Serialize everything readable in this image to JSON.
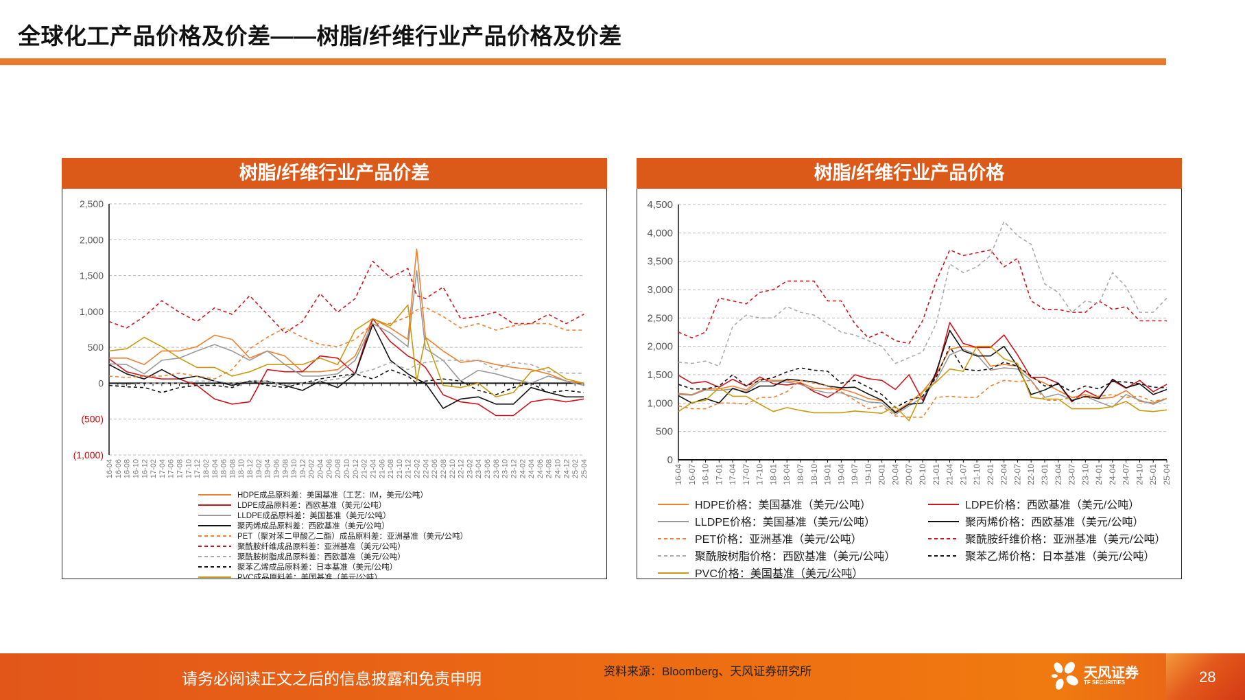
{
  "page": {
    "title": "全球化工产品价格及价差——树脂/纤维行业产品价格及价差",
    "footer_disclaimer": "请务必阅读正文之后的信息披露和免责申明",
    "footer_source": "资料来源：Bloomberg、天风证券研究所",
    "brand_cn": "天风证券",
    "brand_en": "TF SECURITIES",
    "page_number": "28",
    "colors": {
      "accent": "#ea7a2c",
      "panel_header": "#db5a1a",
      "negative_tick": "#d40000"
    }
  },
  "chart_data": [
    {
      "type": "line",
      "title": "树脂/纤维行业产品价差",
      "ylim": [
        -1000,
        2500
      ],
      "yticks": [
        2500,
        2000,
        1500,
        1000,
        500,
        0,
        -500,
        -1000
      ],
      "ytick_labels": [
        "2,500",
        "2,000",
        "1,500",
        "1,000",
        "500",
        "0",
        "(500)",
        "(1,000)"
      ],
      "grid": true,
      "legend_placement": "bottom",
      "categories": [
        "16-04",
        "16-06",
        "16-08",
        "16-10",
        "16-12",
        "17-02",
        "17-04",
        "17-06",
        "17-08",
        "17-10",
        "17-12",
        "18-02",
        "18-04",
        "18-06",
        "18-08",
        "18-10",
        "18-12",
        "19-02",
        "19-04",
        "19-06",
        "19-08",
        "19-10",
        "19-12",
        "20-02",
        "20-04",
        "20-06",
        "20-08",
        "20-10",
        "20-12",
        "21-02",
        "21-04",
        "21-06",
        "21-08",
        "21-10",
        "21-12",
        "22-02",
        "22-04",
        "22-06",
        "22-08",
        "22-10",
        "22-12",
        "23-02",
        "23-04",
        "23-06",
        "23-08",
        "23-10",
        "23-12",
        "24-02",
        "24-04",
        "24-06",
        "24-08",
        "24-10",
        "24-12",
        "25-02",
        "25-04"
      ],
      "x": [
        "16-04",
        "16-08",
        "16-12",
        "17-04",
        "17-08",
        "17-12",
        "18-04",
        "18-08",
        "18-12",
        "19-04",
        "19-08",
        "19-12",
        "20-04",
        "20-08",
        "20-12",
        "21-04",
        "21-08",
        "21-12",
        "22-02",
        "22-04",
        "22-08",
        "22-12",
        "23-04",
        "23-08",
        "23-12",
        "24-04",
        "24-08",
        "24-12",
        "25-04"
      ],
      "series": [
        {
          "name": "HDPE成品原料差：美国基准（工艺：IM，美元/公吨）",
          "color": "#f07f2e",
          "dash": false,
          "values": [
            350,
            350,
            260,
            450,
            450,
            510,
            670,
            610,
            350,
            450,
            380,
            160,
            160,
            190,
            380,
            900,
            770,
            610,
            1870,
            640,
            450,
            290,
            320,
            260,
            220,
            190,
            130,
            30,
            0
          ]
        },
        {
          "name": "LDPE成品原料差：西欧基准（美元/公吨）",
          "color": "#d0121b",
          "dash": false,
          "values": [
            340,
            160,
            100,
            60,
            60,
            -30,
            -220,
            -290,
            -260,
            190,
            160,
            160,
            380,
            350,
            130,
            900,
            580,
            380,
            320,
            220,
            -160,
            -260,
            -290,
            -450,
            -450,
            -260,
            -220,
            -260,
            -220
          ]
        },
        {
          "name": "LLDPE成品原料差：美国基准（美元/公吨）",
          "color": "#999999",
          "dash": false,
          "values": [
            270,
            260,
            130,
            320,
            350,
            450,
            540,
            450,
            320,
            450,
            260,
            100,
            100,
            130,
            320,
            830,
            700,
            510,
            1570,
            480,
            320,
            30,
            180,
            130,
            60,
            0,
            100,
            30,
            -30
          ]
        },
        {
          "name": "聚丙烯成品原料差：西欧基准（美元/公吨）",
          "color": "#111111",
          "dash": false,
          "values": [
            260,
            130,
            60,
            190,
            60,
            100,
            30,
            -30,
            30,
            30,
            -30,
            -100,
            30,
            -60,
            130,
            820,
            320,
            130,
            60,
            0,
            -350,
            -220,
            -190,
            -290,
            -290,
            -60,
            -130,
            -190,
            -190
          ]
        },
        {
          "name": "PET（聚对苯二甲酸乙二酯）成品原料差：亚洲基准（美元/公吨）",
          "color": "#f07f2e",
          "dash": true,
          "values": [
            100,
            80,
            100,
            100,
            140,
            100,
            60,
            190,
            480,
            640,
            770,
            640,
            540,
            510,
            610,
            830,
            830,
            930,
            1020,
            1060,
            930,
            770,
            830,
            740,
            800,
            830,
            830,
            740,
            740
          ]
        },
        {
          "name": "聚酰胺纤维成品原料差：亚洲基准（美元/公吨）",
          "color": "#d0121b",
          "dash": true,
          "values": [
            860,
            770,
            930,
            1150,
            990,
            860,
            1050,
            960,
            1220,
            960,
            700,
            860,
            1250,
            990,
            1180,
            1700,
            1470,
            1600,
            1220,
            1180,
            1340,
            900,
            930,
            990,
            830,
            830,
            960,
            830,
            960
          ]
        },
        {
          "name": "聚酰胺树脂成品原料差：西欧基准（美元/公吨）",
          "color": "#aaaaaa",
          "dash": true,
          "values": [
            -30,
            -20,
            0,
            0,
            0,
            30,
            30,
            0,
            30,
            30,
            -30,
            0,
            30,
            60,
            130,
            190,
            290,
            190,
            260,
            290,
            320,
            320,
            320,
            190,
            290,
            260,
            160,
            140,
            140
          ]
        },
        {
          "name": "聚苯乙烯成品原料差：日本基准（美元/公吨）",
          "color": "#111111",
          "dash": true,
          "values": [
            -30,
            -50,
            -60,
            -130,
            -60,
            -30,
            -30,
            -60,
            30,
            -30,
            -60,
            0,
            60,
            100,
            130,
            60,
            190,
            100,
            0,
            30,
            60,
            30,
            -100,
            -160,
            -60,
            0,
            -130,
            -100,
            -130
          ]
        },
        {
          "name": "PVC成品原料差：美国基准（美元/公吨）",
          "color": "#c99a0e",
          "dash": false,
          "values": [
            450,
            480,
            640,
            510,
            350,
            220,
            220,
            100,
            160,
            260,
            260,
            260,
            350,
            260,
            740,
            900,
            800,
            1090,
            30,
            640,
            -30,
            -60,
            0,
            -190,
            -130,
            160,
            220,
            60,
            0
          ]
        }
      ]
    },
    {
      "type": "line",
      "title": "树脂/纤维行业产品价格",
      "ylim": [
        0,
        4500
      ],
      "yticks": [
        0,
        500,
        1000,
        1500,
        2000,
        2500,
        3000,
        3500,
        4000,
        4500
      ],
      "ytick_labels": [
        "0",
        "500",
        "1,000",
        "1,500",
        "2,000",
        "2,500",
        "3,000",
        "3,500",
        "4,000",
        "4,500"
      ],
      "grid": true,
      "legend_placement": "bottom",
      "categories": [
        "16-04",
        "16-07",
        "16-10",
        "17-01",
        "17-04",
        "17-07",
        "17-10",
        "18-01",
        "18-04",
        "18-07",
        "18-10",
        "19-01",
        "19-04",
        "19-07",
        "19-10",
        "20-01",
        "20-04",
        "20-07",
        "20-10",
        "21-01",
        "21-04",
        "21-07",
        "21-10",
        "22-01",
        "22-04",
        "22-07",
        "22-10",
        "23-01",
        "23-04",
        "23-07",
        "23-10",
        "24-01",
        "24-04",
        "24-07",
        "24-10",
        "25-01",
        "25-04"
      ],
      "series": [
        {
          "name": "HDPE价格：美国基准（美元/公吨）",
          "color": "#f07f2e",
          "dash": false,
          "values": [
            1170,
            1150,
            1250,
            1250,
            1300,
            1230,
            1420,
            1400,
            1400,
            1360,
            1260,
            1250,
            1250,
            1180,
            1080,
            1040,
            850,
            1000,
            1200,
            1500,
            1950,
            2000,
            1980,
            1650,
            1680,
            1650,
            1450,
            1350,
            1220,
            1100,
            1150,
            1080,
            1100,
            1220,
            1030,
            1000,
            1080
          ]
        },
        {
          "name": "LDPE价格：西欧基准（美元/公吨）",
          "color": "#d0121b",
          "dash": false,
          "values": [
            1490,
            1350,
            1380,
            1280,
            1420,
            1300,
            1460,
            1340,
            1320,
            1350,
            1200,
            1100,
            1250,
            1500,
            1430,
            1400,
            1240,
            1500,
            1050,
            1500,
            2420,
            2050,
            1980,
            1980,
            2200,
            1850,
            1450,
            1450,
            1350,
            1020,
            1220,
            1100,
            1400,
            1260,
            1400,
            1200,
            1330
          ]
        },
        {
          "name": "LLDPE价格：美国基准（美元/公吨）",
          "color": "#999999",
          "dash": false,
          "values": [
            1150,
            1140,
            1230,
            1220,
            1250,
            1200,
            1380,
            1380,
            1370,
            1330,
            1230,
            1180,
            1180,
            1100,
            1020,
            1000,
            800,
            950,
            1100,
            1400,
            1850,
            1950,
            1850,
            1580,
            1620,
            1600,
            1400,
            1100,
            1160,
            1060,
            1120,
            1020,
            930,
            1150,
            1050,
            980,
            1080
          ]
        },
        {
          "name": "聚丙烯价格：西欧基准（美元/公吨）",
          "color": "#111111",
          "dash": false,
          "values": [
            1130,
            1000,
            1080,
            1000,
            1260,
            1180,
            1300,
            1300,
            1420,
            1400,
            1370,
            1300,
            1270,
            1280,
            1160,
            1050,
            830,
            980,
            1000,
            1550,
            2280,
            1920,
            1830,
            1830,
            2000,
            1650,
            1150,
            1230,
            1350,
            1040,
            1120,
            1080,
            1420,
            1270,
            1340,
            1150,
            1240
          ]
        },
        {
          "name": "PET价格：亚洲基准（美元/公吨）",
          "color": "#f07f2e",
          "dash": true,
          "values": [
            950,
            900,
            900,
            1000,
            1000,
            980,
            1100,
            1100,
            1200,
            1400,
            1350,
            1300,
            1200,
            1050,
            900,
            950,
            770,
            750,
            750,
            1100,
            1120,
            1100,
            1100,
            1300,
            1400,
            1380,
            1400,
            1050,
            1050,
            1100,
            1100,
            1120,
            1150,
            1100,
            1120,
            1030,
            1080
          ]
        },
        {
          "name": "聚酰胺纤维价格：亚洲基准（美元/公吨）",
          "color": "#d0121b",
          "dash": true,
          "values": [
            2250,
            2150,
            2250,
            2850,
            2800,
            2750,
            2950,
            3000,
            3150,
            3150,
            3150,
            2800,
            2800,
            2400,
            2150,
            2250,
            2100,
            2050,
            2450,
            3150,
            3700,
            3600,
            3650,
            3700,
            3400,
            3550,
            2800,
            2650,
            2650,
            2600,
            2600,
            2800,
            2650,
            2700,
            2450,
            2450,
            2450
          ]
        },
        {
          "name": "聚酰胺树脂价格：西欧基准（美元/公吨）",
          "color": "#aaaaaa",
          "dash": true,
          "values": [
            1720,
            1700,
            1740,
            1650,
            2350,
            2550,
            2500,
            2500,
            2700,
            2600,
            2550,
            2400,
            2250,
            2200,
            2100,
            2000,
            1700,
            1800,
            1900,
            2400,
            3450,
            3300,
            3400,
            3600,
            4200,
            3950,
            3800,
            3100,
            2950,
            2600,
            2800,
            2750,
            3300,
            3050,
            2600,
            2600,
            2850
          ]
        },
        {
          "name": "聚苯乙烯价格：日本基准（美元/公吨）",
          "color": "#111111",
          "dash": true,
          "values": [
            1330,
            1250,
            1250,
            1300,
            1500,
            1300,
            1400,
            1450,
            1550,
            1620,
            1580,
            1560,
            1350,
            1400,
            1280,
            1150,
            920,
            1050,
            1120,
            1450,
            2000,
            1600,
            1570,
            1600,
            1720,
            1650,
            1480,
            1300,
            1330,
            1200,
            1300,
            1250,
            1380,
            1370,
            1340,
            1280,
            1270
          ]
        },
        {
          "name": "PVC价格：美国基准（美元/公吨）",
          "color": "#c99a0e",
          "dash": false,
          "values": [
            850,
            1010,
            1050,
            1270,
            1120,
            1120,
            980,
            850,
            920,
            870,
            830,
            830,
            830,
            860,
            840,
            820,
            940,
            690,
            1200,
            1370,
            1600,
            1560,
            2000,
            2000,
            1780,
            1700,
            1100,
            1070,
            1070,
            900,
            900,
            900,
            940,
            1030,
            870,
            850,
            880
          ]
        }
      ]
    }
  ]
}
